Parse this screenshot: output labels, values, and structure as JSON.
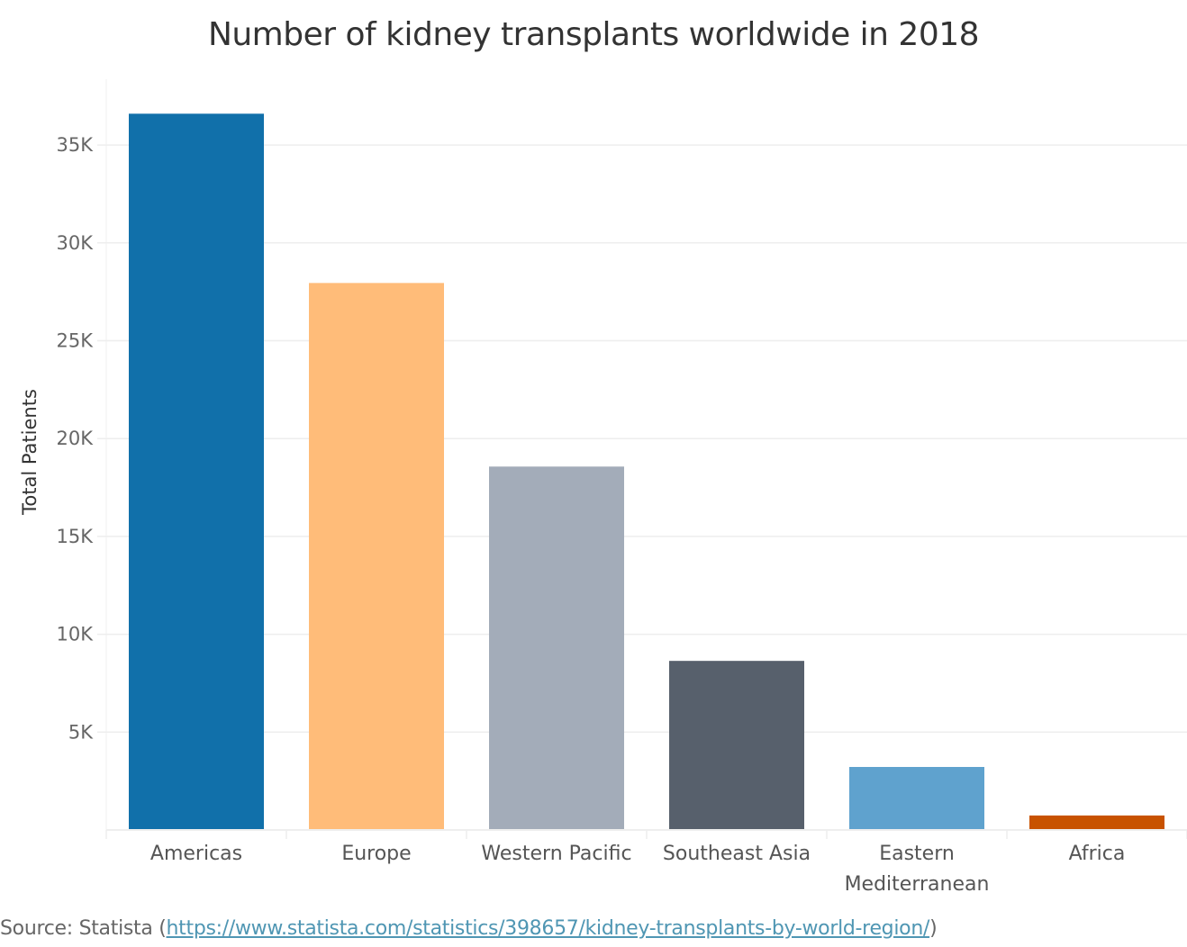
{
  "chart_data": {
    "type": "bar",
    "title": "Number of kidney transplants  worldwide in  2018",
    "xlabel": "",
    "ylabel": "Total Patients",
    "categories": [
      {
        "label": [
          "Americas"
        ],
        "name": "Americas"
      },
      {
        "label": [
          "Europe"
        ],
        "name": "Europe"
      },
      {
        "label": [
          "Western Pacific"
        ],
        "name": "Western Pacific"
      },
      {
        "label": [
          "Southeast Asia"
        ],
        "name": "Southeast Asia"
      },
      {
        "label": [
          "Eastern",
          "Mediterranean"
        ],
        "name": "Eastern Mediterranean"
      },
      {
        "label": [
          "Africa"
        ],
        "name": "Africa"
      }
    ],
    "values": [
      36600,
      27950,
      18570,
      8640,
      3220,
      740
    ],
    "colors": [
      "#1170aa",
      "#ffbc79",
      "#a3acb9",
      "#57606c",
      "#5fa2ce",
      "#c85200"
    ],
    "ylim": [
      0,
      38000
    ],
    "yticks": [
      {
        "value": 5000,
        "label": "5K"
      },
      {
        "value": 10000,
        "label": "10K"
      },
      {
        "value": 15000,
        "label": "15K"
      },
      {
        "value": 20000,
        "label": "20K"
      },
      {
        "value": 25000,
        "label": "25K"
      },
      {
        "value": 30000,
        "label": "30K"
      },
      {
        "value": 35000,
        "label": "35K"
      }
    ],
    "grid": true,
    "legend": "none"
  },
  "source": {
    "prefix": "Source: Statista  (",
    "link": "https://www.statista.com/statistics/398657/kidney-transplants-by-world-region/",
    "suffix": ")"
  }
}
